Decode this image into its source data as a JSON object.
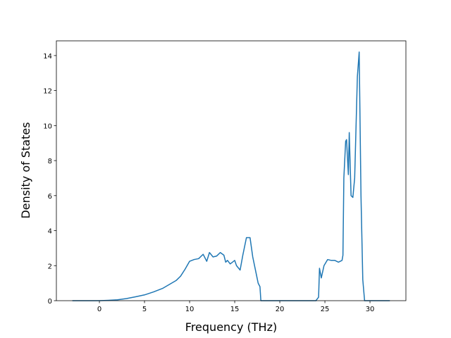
{
  "chart_data": {
    "type": "line",
    "x_label": "Frequency (THz)",
    "y_label": "Density of States",
    "color": "#1f77b4",
    "x": [
      -3,
      0,
      1,
      2,
      3,
      4,
      5,
      6,
      7,
      8,
      8.5,
      9,
      9.5,
      10,
      10.5,
      11,
      11.5,
      11.9,
      12.2,
      12.6,
      13,
      13.4,
      13.8,
      14,
      14.2,
      14.5,
      15,
      15.2,
      15.6,
      15.9,
      16.3,
      16.7,
      17,
      17.4,
      17.6,
      17.8,
      17.9,
      24,
      24.3,
      24.4,
      24.6,
      24.9,
      25.3,
      25.7,
      26.1,
      26.5,
      26.9,
      27,
      27.1,
      27.3,
      27.4,
      27.6,
      27.7,
      27.9,
      28.1,
      28.3,
      28.6,
      28.8,
      29,
      29.2,
      29.4,
      32.2
    ],
    "values": [
      0,
      0,
      0.02,
      0.05,
      0.12,
      0.22,
      0.33,
      0.5,
      0.7,
      1.0,
      1.15,
      1.4,
      1.8,
      2.25,
      2.35,
      2.4,
      2.65,
      2.25,
      2.75,
      2.5,
      2.55,
      2.75,
      2.6,
      2.2,
      2.3,
      2.1,
      2.3,
      2.0,
      1.75,
      2.6,
      3.6,
      3.6,
      2.5,
      1.5,
      1.0,
      0.8,
      0,
      0,
      0.2,
      1.85,
      1.3,
      2.0,
      2.35,
      2.3,
      2.3,
      2.2,
      2.3,
      2.6,
      7.0,
      9.1,
      9.2,
      7.2,
      9.6,
      6.0,
      5.9,
      7.0,
      12.8,
      14.2,
      6.0,
      1.2,
      0,
      0
    ],
    "xlim": [
      -4.77,
      33.98
    ],
    "ylim": [
      0,
      14.84
    ],
    "xticks": [
      0,
      5,
      10,
      15,
      20,
      25,
      30
    ],
    "yticks": [
      0,
      2,
      4,
      6,
      8,
      10,
      12,
      14
    ]
  }
}
